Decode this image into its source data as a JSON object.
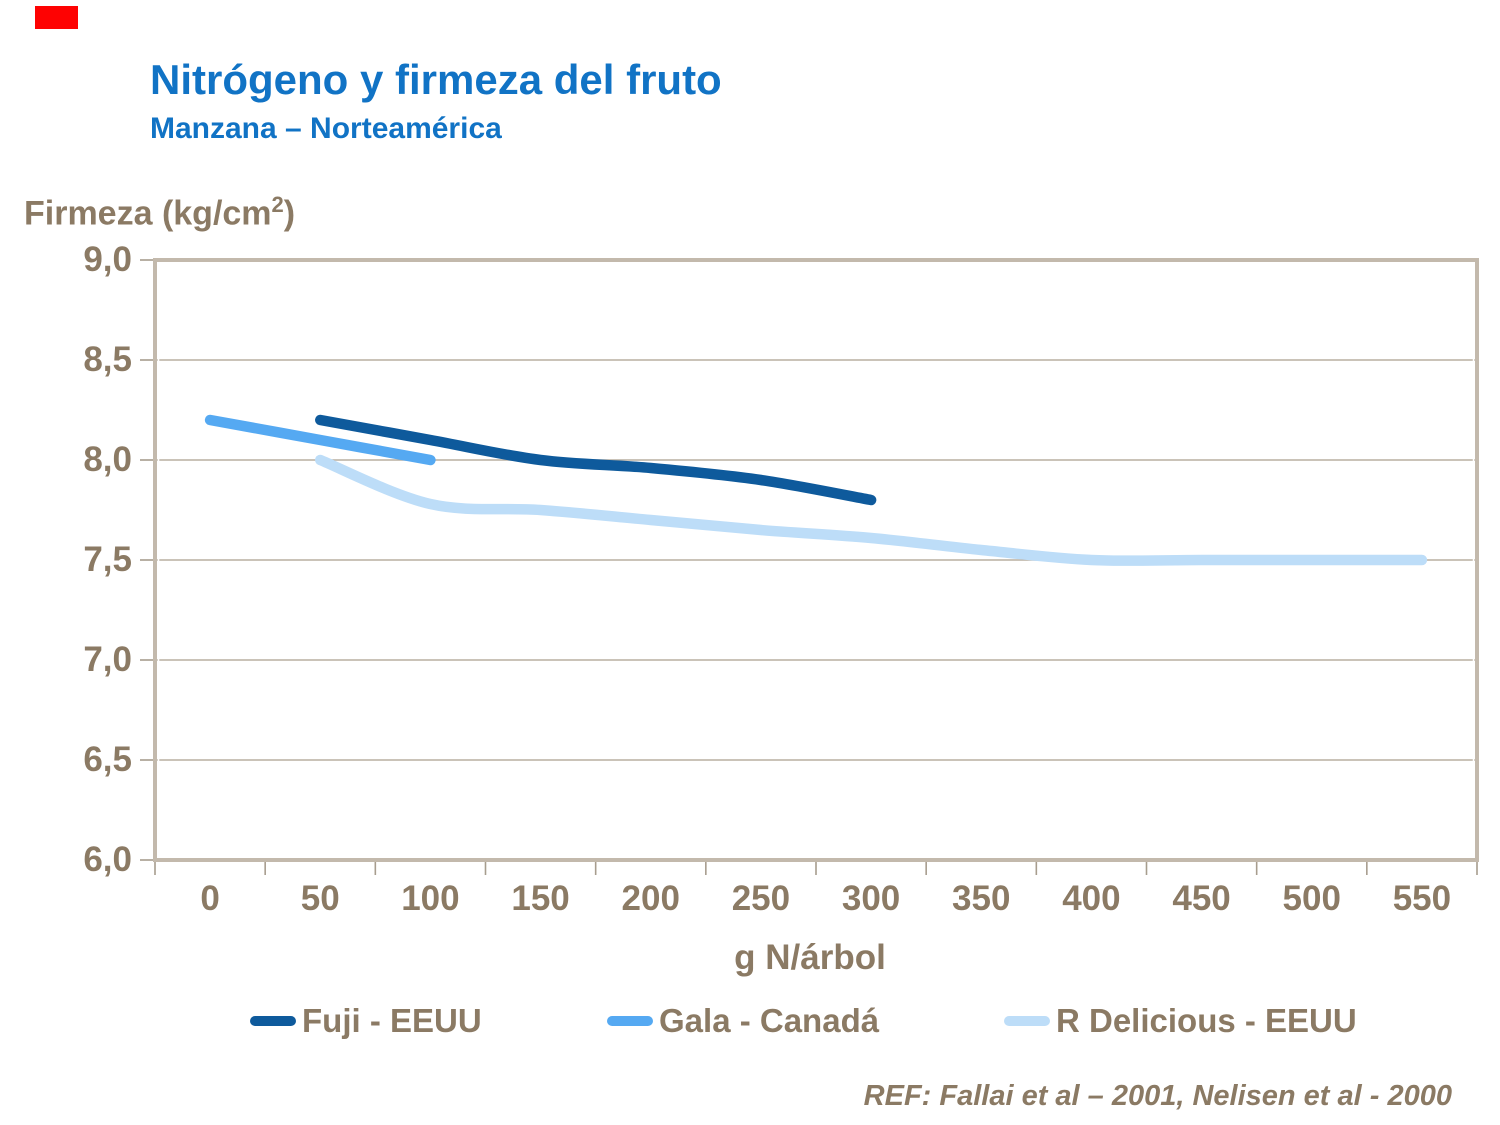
{
  "slide": {
    "title": "Nitrógeno y firmeza del fruto",
    "subtitle": "Manzana – Norteamérica",
    "reference": "REF: Fallai et al – 2001, Nelisen et al - 2000"
  },
  "colors": {
    "title_blue": "#1173c5",
    "text_brown": "#8b7a64",
    "plot_border": "#c3b9ac",
    "gridline": "#b9afa1",
    "tick": "#a79d8e",
    "marker_red": "#fe0202",
    "fuji": "#0e5a9c",
    "gala": "#55a9f2",
    "r_delicious": "#bdddf8"
  },
  "chart_data": {
    "type": "line",
    "title": "",
    "xlabel": "g N/árbol",
    "y_axis_label": {
      "pre": "Firmeza (kg/cm",
      "sup": "2",
      "post": ")"
    },
    "x_axis_type": "category",
    "x_ticks": [
      "0",
      "50",
      "100",
      "150",
      "200",
      "250",
      "300",
      "350",
      "400",
      "450",
      "500",
      "550"
    ],
    "y_ticks": [
      "9,0",
      "8,5",
      "8,0",
      "7,5",
      "7,0",
      "6,5",
      "6,0"
    ],
    "y_tick_values": [
      9.0,
      8.5,
      8.0,
      7.5,
      7.0,
      6.5,
      6.0
    ],
    "xlim": [
      0,
      550
    ],
    "ylim": [
      6.0,
      9.0
    ],
    "grid": "horizontal",
    "legend_position": "bottom",
    "series": [
      {
        "name": "Fuji - EEUU",
        "color": "#0e5a9c",
        "x": [
          50,
          100,
          150,
          200,
          250,
          300
        ],
        "y": [
          8.2,
          8.1,
          8.0,
          7.96,
          7.9,
          7.8
        ]
      },
      {
        "name": "Gala - Canadá",
        "color": "#55a9f2",
        "x": [
          0,
          50,
          100
        ],
        "y": [
          8.2,
          8.1,
          8.0
        ]
      },
      {
        "name": "R Delicious - EEUU",
        "color": "#bdddf8",
        "x": [
          50,
          100,
          150,
          200,
          250,
          300,
          350,
          400,
          450,
          500,
          550
        ],
        "y": [
          8.0,
          7.78,
          7.75,
          7.7,
          7.65,
          7.61,
          7.55,
          7.5,
          7.5,
          7.5,
          7.5
        ]
      }
    ]
  }
}
